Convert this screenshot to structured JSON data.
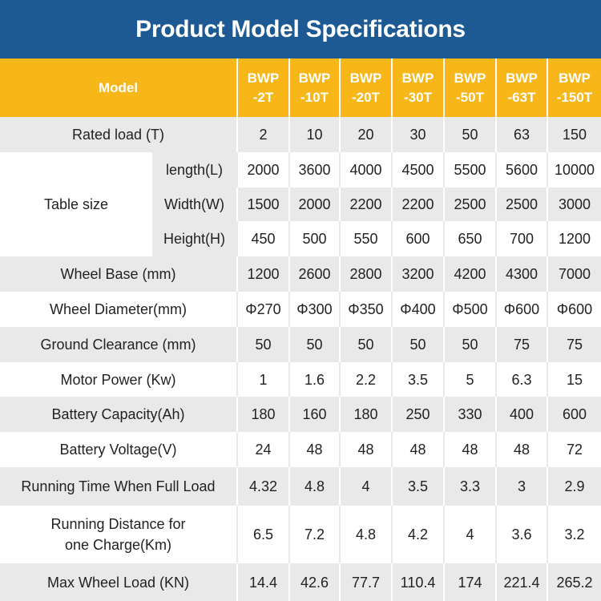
{
  "title": "Product Model Specifications",
  "header": {
    "model_label": "Model",
    "models": [
      "BWP\n-2T",
      "BWP\n-10T",
      "BWP\n-20T",
      "BWP\n-30T",
      "BWP\n-50T",
      "BWP\n-63T",
      "BWP\n-150T"
    ]
  },
  "rows": {
    "rated_load": {
      "label": "Rated load (T)",
      "values": [
        "2",
        "10",
        "20",
        "30",
        "50",
        "63",
        "150"
      ]
    },
    "table_size": {
      "label": "Table size",
      "length": {
        "label": "length(L)",
        "values": [
          "2000",
          "3600",
          "4000",
          "4500",
          "5500",
          "5600",
          "10000"
        ]
      },
      "width": {
        "label": "Width(W)",
        "values": [
          "1500",
          "2000",
          "2200",
          "2200",
          "2500",
          "2500",
          "3000"
        ]
      },
      "height": {
        "label": "Height(H)",
        "values": [
          "450",
          "500",
          "550",
          "600",
          "650",
          "700",
          "1200"
        ]
      }
    },
    "wheel_base": {
      "label": "Wheel Base (mm)",
      "values": [
        "1200",
        "2600",
        "2800",
        "3200",
        "4200",
        "4300",
        "7000"
      ]
    },
    "wheel_diameter": {
      "label": "Wheel Diameter(mm)",
      "values": [
        "Φ270",
        "Φ300",
        "Φ350",
        "Φ400",
        "Φ500",
        "Φ600",
        "Φ600"
      ]
    },
    "ground_clearance": {
      "label": "Ground Clearance (mm)",
      "values": [
        "50",
        "50",
        "50",
        "50",
        "50",
        "75",
        "75"
      ]
    },
    "motor_power": {
      "label": "Motor Power (Kw)",
      "values": [
        "1",
        "1.6",
        "2.2",
        "3.5",
        "5",
        "6.3",
        "15"
      ]
    },
    "battery_capacity": {
      "label": "Battery Capacity(Ah)",
      "values": [
        "180",
        "160",
        "180",
        "250",
        "330",
        "400",
        "600"
      ]
    },
    "battery_voltage": {
      "label": "Battery Voltage(V)",
      "values": [
        "24",
        "48",
        "48",
        "48",
        "48",
        "48",
        "72"
      ]
    },
    "running_time": {
      "label": "Running Time When Full Load",
      "values": [
        "4.32",
        "4.8",
        "4",
        "3.5",
        "3.3",
        "3",
        "2.9"
      ]
    },
    "running_distance": {
      "label": "Running Distance for\none Charge(Km)",
      "values": [
        "6.5",
        "7.2",
        "4.8",
        "4.2",
        "4",
        "3.6",
        "3.2"
      ]
    },
    "max_wheel_load": {
      "label": "Max Wheel Load (KN)",
      "values": [
        "14.4",
        "42.6",
        "77.7",
        "110.4",
        "174",
        "221.4",
        "265.2"
      ]
    }
  },
  "colors": {
    "banner": "#1d5a94",
    "header": "#f7b718",
    "row_shade": "#e9e9e9"
  }
}
